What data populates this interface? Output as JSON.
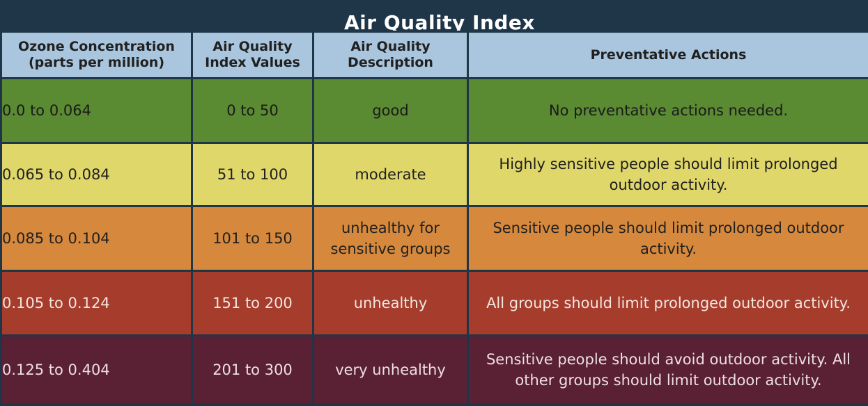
{
  "title": "Air Quality Index",
  "headers": [
    "Ozone Concentration (parts per million)",
    "Air Quality Index Values",
    "Air Quality Description",
    "Preventative Actions"
  ],
  "rows": [
    {
      "range": "0.0 to 0.064",
      "aqi": "0 to 50",
      "description": "good",
      "action": "No preventative actions needed.",
      "color": "#5a8a32"
    },
    {
      "range": "0.065 to 0.084",
      "aqi": "51 to 100",
      "description": "moderate",
      "action": "Highly sensitive people should limit prolonged outdoor activity.",
      "color": "#e0d76a"
    },
    {
      "range": "0.085 to 0.104",
      "aqi": "101 to 150",
      "description": "unhealthy for sensitive groups",
      "action": "Sensitive people should limit prolonged outdoor activity.",
      "color": "#d6893c"
    },
    {
      "range": "0.105 to 0.124",
      "aqi": "151 to 200",
      "description": "unhealthy",
      "action": "All groups should limit prolonged outdoor activity.",
      "color": "#a63c2c"
    },
    {
      "range": "0.125 to 0.404",
      "aqi": "201 to 300",
      "description": "very unhealthy",
      "action": "Sensitive people should avoid outdoor activity. All other groups should limit outdoor activity.",
      "color": "#5a2134"
    }
  ]
}
